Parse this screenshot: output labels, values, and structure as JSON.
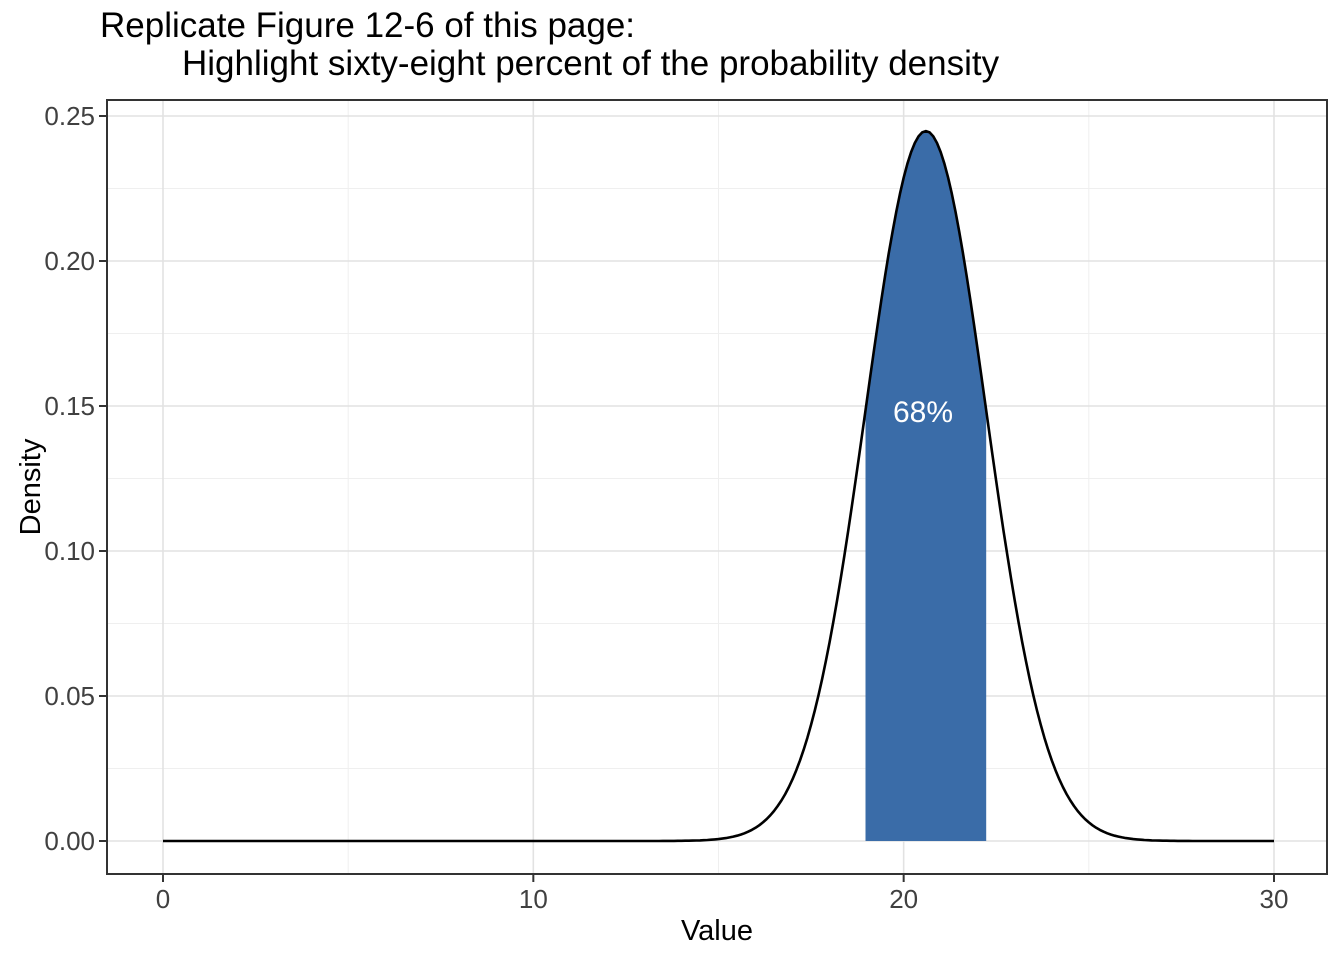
{
  "title": {
    "line1": "Replicate Figure 12-6 of this page:",
    "line2": "Highlight sixty-eight percent of the probability density"
  },
  "chart_data": {
    "type": "area",
    "xlabel": "Value",
    "ylabel": "Density",
    "x_ticks": [
      "0",
      "10",
      "20",
      "30"
    ],
    "x_tick_values": [
      0,
      10,
      20,
      30
    ],
    "y_ticks": [
      "0.00",
      "0.05",
      "0.10",
      "0.15",
      "0.20",
      "0.25"
    ],
    "y_tick_values": [
      0,
      0.05,
      0.1,
      0.15,
      0.2,
      0.25
    ],
    "xlim": [
      -1.5,
      31.5
    ],
    "ylim": [
      -0.012,
      0.258
    ],
    "grid": {
      "major_x": [
        0,
        10,
        20,
        30
      ],
      "minor_x": [
        5,
        15,
        25
      ],
      "major_y": [
        0,
        0.05,
        0.1,
        0.15,
        0.2,
        0.25
      ],
      "minor_y": [
        0.025,
        0.075,
        0.125,
        0.175,
        0.225
      ]
    },
    "curve": {
      "shape": "normal-density",
      "mean": 20.6,
      "sd": 1.63,
      "peak_density": 0.2448,
      "x_start": 0,
      "x_end": 30
    },
    "sampled_points": [
      [
        14.1,
        0.0001
      ],
      [
        15.1,
        0.0008
      ],
      [
        15.6,
        0.0022
      ],
      [
        16.1,
        0.0054
      ],
      [
        16.6,
        0.0121
      ],
      [
        17.1,
        0.0244
      ],
      [
        17.6,
        0.045
      ],
      [
        18.1,
        0.0755
      ],
      [
        18.6,
        0.1153
      ],
      [
        19.1,
        0.1603
      ],
      [
        19.6,
        0.2028
      ],
      [
        20.1,
        0.2336
      ],
      [
        20.6,
        0.2448
      ],
      [
        21.1,
        0.2336
      ],
      [
        21.6,
        0.2028
      ],
      [
        22.1,
        0.1603
      ],
      [
        22.6,
        0.1153
      ],
      [
        23.1,
        0.0755
      ],
      [
        23.6,
        0.045
      ],
      [
        24.1,
        0.0244
      ],
      [
        24.6,
        0.0121
      ],
      [
        25.1,
        0.0054
      ],
      [
        25.6,
        0.0022
      ],
      [
        26.1,
        0.0008
      ],
      [
        27.1,
        0.0001
      ]
    ],
    "highlight": {
      "from": 18.97,
      "to": 22.23,
      "label": "68%",
      "label_x": 20.6,
      "label_y": 0.148
    },
    "colors": {
      "highlight_fill": "#3A6CA8",
      "highlight_label": "#ffffff",
      "curve": "#000000",
      "major_grid": "#e2e2e2",
      "minor_grid": "#efefef",
      "panel_border": "#333333",
      "tick": "#333333",
      "tick_label": "#404040",
      "axis_title": "#000000",
      "background": "#ffffff"
    }
  }
}
